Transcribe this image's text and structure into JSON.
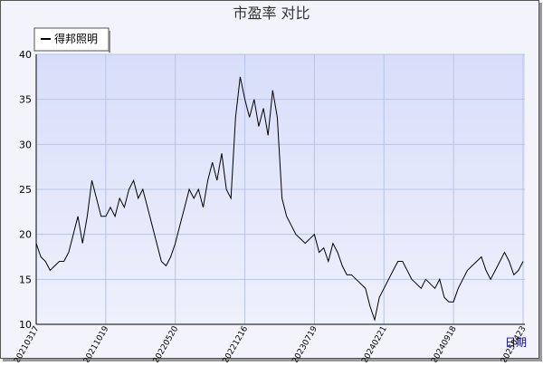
{
  "chart_data": {
    "type": "line",
    "title": "市盈率  对比",
    "x_label": "日期",
    "categories": [
      "20210317",
      null,
      null,
      null,
      null,
      null,
      null,
      null,
      null,
      null,
      null,
      null,
      null,
      null,
      null,
      "20211019",
      null,
      null,
      null,
      null,
      null,
      null,
      null,
      null,
      null,
      null,
      null,
      null,
      null,
      null,
      "20220520",
      null,
      null,
      null,
      null,
      null,
      null,
      null,
      null,
      null,
      null,
      null,
      null,
      null,
      null,
      "20221216",
      null,
      null,
      null,
      null,
      null,
      null,
      null,
      null,
      null,
      null,
      null,
      null,
      null,
      null,
      "20230719",
      null,
      null,
      null,
      null,
      null,
      null,
      null,
      null,
      null,
      null,
      null,
      null,
      null,
      null,
      "20240221",
      null,
      null,
      null,
      null,
      null,
      null,
      null,
      null,
      null,
      null,
      null,
      null,
      null,
      null,
      "20240918",
      null,
      null,
      null,
      null,
      null,
      null,
      null,
      null,
      null,
      null,
      null,
      null,
      null,
      null,
      "20250423"
    ],
    "series": [
      {
        "name": "得邦照明",
        "color": "#000000",
        "values": [
          19,
          17.5,
          17,
          16,
          16.5,
          17,
          17,
          18,
          20,
          22,
          19,
          22,
          26,
          24,
          22,
          22,
          23,
          22,
          24,
          23,
          25,
          26,
          24,
          25,
          23,
          21,
          19,
          17,
          16.5,
          17.5,
          19,
          21,
          23,
          25,
          24,
          25,
          23,
          26,
          28,
          26,
          29,
          25,
          24,
          33,
          37.5,
          35,
          33,
          35,
          32,
          34,
          31,
          36,
          33,
          24,
          22,
          21,
          20,
          19.5,
          19,
          19.5,
          20,
          18,
          18.5,
          17,
          19,
          18,
          16.5,
          15.5,
          15.5,
          15,
          14.5,
          14,
          12,
          10.5,
          13,
          14,
          15,
          16,
          17,
          17,
          16,
          15,
          14.5,
          14,
          15,
          14.5,
          14,
          15,
          13,
          12.5,
          12.5,
          14,
          15,
          16,
          16.5,
          17,
          17.5,
          16,
          15,
          16,
          17,
          18,
          17,
          15.5,
          16,
          17
        ]
      }
    ],
    "ylim": [
      10,
      40
    ],
    "yticks": [
      10,
      15,
      20,
      25,
      30,
      35,
      40
    ],
    "grid": true,
    "legend": "top-left"
  }
}
